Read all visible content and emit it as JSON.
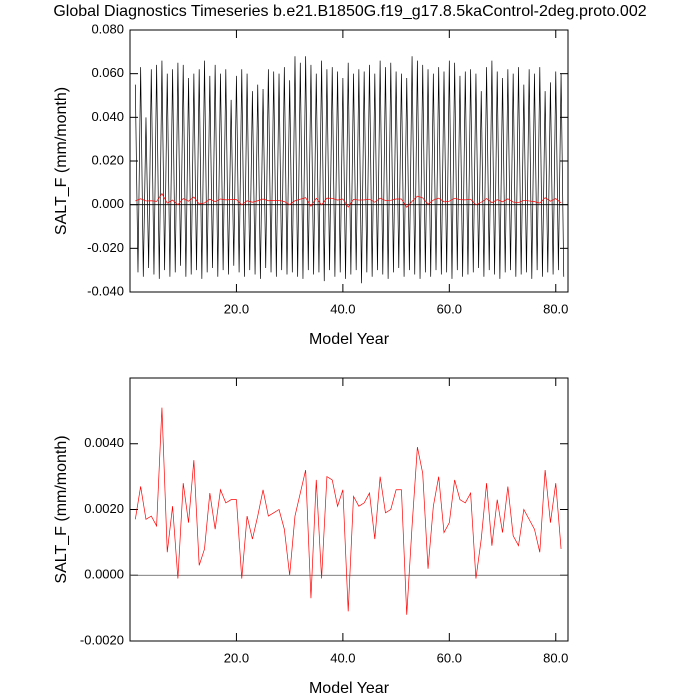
{
  "chart_data": [
    {
      "type": "line",
      "title": "Global Diagnostics Timeseries b.e21.B1850G.f19_g17.8.5kaControl-2deg.proto.002",
      "xlabel": "Model Year",
      "ylabel": "SALT_F (mm/month)",
      "xlim": [
        0,
        82.3
      ],
      "ylim": [
        -0.04,
        0.08
      ],
      "xticks": [
        {
          "value": 20,
          "label": "20.0"
        },
        {
          "value": 40,
          "label": "40.0"
        },
        {
          "value": 60,
          "label": "60.0"
        },
        {
          "value": 80,
          "label": "80.0"
        }
      ],
      "yticks": [
        {
          "value": -0.04,
          "label": "-0.040"
        },
        {
          "value": -0.02,
          "label": "-0.020"
        },
        {
          "value": 0,
          "label": "0.000"
        },
        {
          "value": 0.02,
          "label": "0.020"
        },
        {
          "value": 0.04,
          "label": "0.040"
        },
        {
          "value": 0.06,
          "label": "0.060"
        },
        {
          "value": 0.08,
          "label": "0.080"
        }
      ],
      "series": [
        {
          "color": "#000000",
          "x": [
            1,
            1.5,
            2,
            2.5,
            3,
            3.5,
            4,
            4.5,
            5,
            5.5,
            6,
            6.5,
            7,
            7.5,
            8,
            8.5,
            9,
            9.5,
            10,
            10.5,
            11,
            11.5,
            12,
            12.5,
            13,
            13.5,
            14,
            14.5,
            15,
            15.5,
            16,
            16.5,
            17,
            17.5,
            18,
            18.5,
            19,
            19.5,
            20,
            20.5,
            21,
            21.5,
            22,
            22.5,
            23,
            23.5,
            24,
            24.5,
            25,
            25.5,
            26,
            26.5,
            27,
            27.5,
            28,
            28.5,
            29,
            29.5,
            30,
            30.5,
            31,
            31.5,
            32,
            32.5,
            33,
            33.5,
            34,
            34.5,
            35,
            35.5,
            36,
            36.5,
            37,
            37.5,
            38,
            38.5,
            39,
            39.5,
            40,
            40.5,
            41,
            41.5,
            42,
            42.5,
            43,
            43.5,
            44,
            44.5,
            45,
            45.5,
            46,
            46.5,
            47,
            47.5,
            48,
            48.5,
            49,
            49.5,
            50,
            50.5,
            51,
            51.5,
            52,
            52.5,
            53,
            53.5,
            54,
            54.5,
            55,
            55.5,
            56,
            56.5,
            57,
            57.5,
            58,
            58.5,
            59,
            59.5,
            60,
            60.5,
            61,
            61.5,
            62,
            62.5,
            63,
            63.5,
            64,
            64.5,
            65,
            65.5,
            66,
            66.5,
            67,
            67.5,
            68,
            68.5,
            69,
            69.5,
            70,
            70.5,
            71,
            71.5,
            72,
            72.5,
            73,
            73.5,
            74,
            74.5,
            75,
            75.5,
            76,
            76.5,
            77,
            77.5,
            78,
            78.5,
            79,
            79.5,
            80,
            80.5,
            81,
            81.5
          ],
          "values": [
            0.055,
            -0.031,
            0.063,
            -0.033,
            0.04,
            -0.029,
            0.062,
            -0.032,
            0.064,
            -0.034,
            0.066,
            -0.03,
            0.06,
            -0.033,
            0.062,
            -0.031,
            0.065,
            -0.028,
            0.064,
            -0.033,
            0.058,
            -0.032,
            0.06,
            -0.03,
            0.062,
            -0.034,
            0.066,
            -0.031,
            0.059,
            -0.029,
            0.064,
            -0.033,
            0.06,
            -0.03,
            0.062,
            -0.032,
            0.048,
            -0.028,
            0.059,
            -0.031,
            0.062,
            -0.033,
            0.06,
            -0.03,
            0.052,
            -0.032,
            0.055,
            -0.034,
            0.053,
            -0.029,
            0.062,
            -0.031,
            0.061,
            -0.033,
            0.06,
            -0.03,
            0.063,
            -0.032,
            0.057,
            -0.031,
            0.068,
            -0.033,
            0.065,
            -0.034,
            0.068,
            -0.03,
            0.064,
            -0.032,
            0.06,
            -0.031,
            0.066,
            -0.035,
            0.062,
            -0.03,
            0.063,
            -0.033,
            0.061,
            -0.031,
            0.058,
            -0.034,
            0.065,
            -0.032,
            0.06,
            -0.03,
            0.062,
            -0.036,
            0.061,
            -0.031,
            0.064,
            -0.033,
            0.06,
            -0.03,
            0.066,
            -0.032,
            0.063,
            -0.034,
            0.065,
            -0.031,
            0.061,
            -0.029,
            0.06,
            -0.033,
            0.058,
            -0.03,
            0.068,
            -0.032,
            0.066,
            -0.034,
            0.064,
            -0.031,
            0.062,
            -0.033,
            0.06,
            -0.03,
            0.063,
            -0.032,
            0.061,
            -0.031,
            0.066,
            -0.034,
            0.065,
            -0.03,
            0.059,
            -0.033,
            0.061,
            -0.032,
            0.062,
            -0.031,
            0.06,
            -0.029,
            0.052,
            -0.033,
            0.063,
            -0.03,
            0.066,
            -0.032,
            0.061,
            -0.034,
            0.058,
            -0.031,
            0.062,
            -0.03,
            0.06,
            -0.033,
            0.063,
            -0.032,
            0.055,
            -0.031,
            0.062,
            -0.034,
            0.06,
            -0.03,
            0.063,
            -0.033,
            0.052,
            -0.031,
            0.056,
            -0.032,
            0.061,
            -0.03,
            0.06,
            -0.033
          ]
        },
        {
          "color": "#ff0000",
          "x": [
            1,
            2,
            3,
            4,
            5,
            6,
            7,
            8,
            9,
            10,
            11,
            12,
            13,
            14,
            15,
            16,
            17,
            18,
            19,
            20,
            21,
            22,
            23,
            24,
            25,
            26,
            27,
            28,
            29,
            30,
            31,
            32,
            33,
            34,
            35,
            36,
            37,
            38,
            39,
            40,
            41,
            42,
            43,
            44,
            45,
            46,
            47,
            48,
            49,
            50,
            51,
            52,
            53,
            54,
            55,
            56,
            57,
            58,
            59,
            60,
            61,
            62,
            63,
            64,
            65,
            66,
            67,
            68,
            69,
            70,
            71,
            72,
            73,
            74,
            75,
            76,
            77,
            78,
            79,
            80,
            81
          ],
          "values": [
            0.0017,
            0.0027,
            0.0017,
            0.0018,
            0.0015,
            0.0051,
            0.0007,
            0.0021,
            -0.0001,
            0.0028,
            0.0016,
            0.0035,
            0.0003,
            0.0008,
            0.0025,
            0.0014,
            0.0026,
            0.0022,
            0.0023,
            0.0023,
            -0.0001,
            0.0018,
            0.0011,
            0.0018,
            0.0026,
            0.0018,
            0.0019,
            0.002,
            0.0014,
            0.0,
            0.0018,
            0.0025,
            0.0032,
            -0.0007,
            0.0029,
            -0.0001,
            0.003,
            0.0029,
            0.0021,
            0.0026,
            -0.0011,
            0.0024,
            0.0021,
            0.0022,
            0.0025,
            0.0011,
            0.003,
            0.0019,
            0.002,
            0.0026,
            0.0026,
            -0.0012,
            0.0015,
            0.0039,
            0.0031,
            0.0002,
            0.0021,
            0.003,
            0.0013,
            0.0016,
            0.0029,
            0.0023,
            0.0022,
            0.0025,
            -0.0001,
            0.0011,
            0.0028,
            0.0009,
            0.0023,
            0.0013,
            0.0027,
            0.0012,
            0.0009,
            0.002,
            0.0017,
            0.0014,
            0.0007,
            0.0032,
            0.0016,
            0.0028,
            0.0008
          ]
        }
      ]
    },
    {
      "type": "line",
      "xlabel": "Model Year",
      "ylabel": "SALT_F (mm/month)",
      "xlim": [
        0,
        82.3
      ],
      "ylim": [
        -0.002,
        0.006
      ],
      "xticks": [
        {
          "value": 20,
          "label": "20.0"
        },
        {
          "value": 40,
          "label": "40.0"
        },
        {
          "value": 60,
          "label": "60.0"
        },
        {
          "value": 80,
          "label": "80.0"
        }
      ],
      "yticks": [
        {
          "value": -0.002,
          "label": "-0.0020"
        },
        {
          "value": 0,
          "label": "0.0000"
        },
        {
          "value": 0.002,
          "label": "0.0020"
        },
        {
          "value": 0.004,
          "label": "0.0040"
        }
      ],
      "series": [
        {
          "color": "#ff0000",
          "x": [
            1,
            2,
            3,
            4,
            5,
            6,
            7,
            8,
            9,
            10,
            11,
            12,
            13,
            14,
            15,
            16,
            17,
            18,
            19,
            20,
            21,
            22,
            23,
            24,
            25,
            26,
            27,
            28,
            29,
            30,
            31,
            32,
            33,
            34,
            35,
            36,
            37,
            38,
            39,
            40,
            41,
            42,
            43,
            44,
            45,
            46,
            47,
            48,
            49,
            50,
            51,
            52,
            53,
            54,
            55,
            56,
            57,
            58,
            59,
            60,
            61,
            62,
            63,
            64,
            65,
            66,
            67,
            68,
            69,
            70,
            71,
            72,
            73,
            74,
            75,
            76,
            77,
            78,
            79,
            80,
            81
          ],
          "values": [
            0.0017,
            0.0027,
            0.0017,
            0.0018,
            0.0015,
            0.0051,
            0.0007,
            0.0021,
            -0.0001,
            0.0028,
            0.0016,
            0.0035,
            0.0003,
            0.0008,
            0.0025,
            0.0014,
            0.0026,
            0.0022,
            0.0023,
            0.0023,
            -0.0001,
            0.0018,
            0.0011,
            0.0018,
            0.0026,
            0.0018,
            0.0019,
            0.002,
            0.0014,
            0.0,
            0.0018,
            0.0025,
            0.0032,
            -0.0007,
            0.0029,
            -0.0001,
            0.003,
            0.0029,
            0.0021,
            0.0026,
            -0.0011,
            0.0024,
            0.0021,
            0.0022,
            0.0025,
            0.0011,
            0.003,
            0.0019,
            0.002,
            0.0026,
            0.0026,
            -0.0012,
            0.0015,
            0.0039,
            0.0031,
            0.0002,
            0.0021,
            0.003,
            0.0013,
            0.0016,
            0.0029,
            0.0023,
            0.0022,
            0.0025,
            -0.0001,
            0.0011,
            0.0028,
            0.0009,
            0.0023,
            0.0013,
            0.0027,
            0.0012,
            0.0009,
            0.002,
            0.0017,
            0.0014,
            0.0007,
            0.0032,
            0.0016,
            0.0028,
            0.0008
          ]
        }
      ]
    }
  ]
}
